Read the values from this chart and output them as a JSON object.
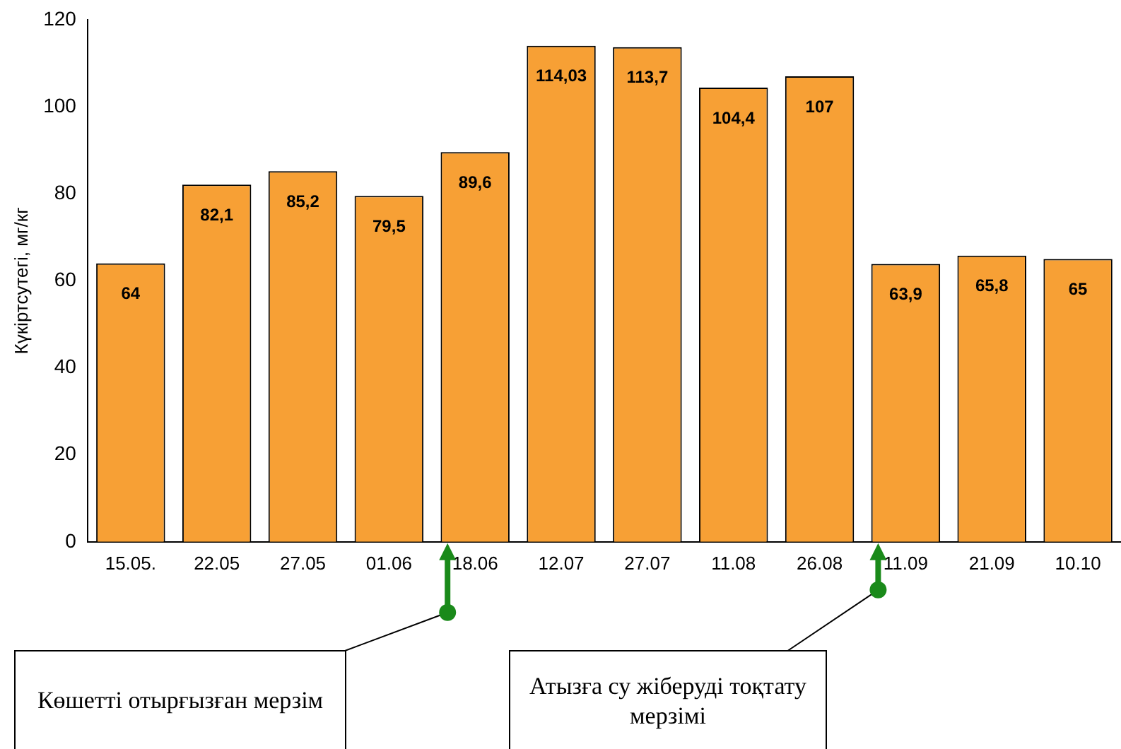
{
  "chart_data": {
    "type": "bar",
    "ylabel": "Күкіртсутегі, мг/кг",
    "categories": [
      "15.05.",
      "22.05",
      "27.05",
      "01.06",
      "18.06",
      "12.07",
      "27.07",
      "11.08",
      "26.08",
      "11.09",
      "21.09",
      "10.10"
    ],
    "values": [
      64,
      82.1,
      85.2,
      79.5,
      89.6,
      114.03,
      113.7,
      104.4,
      107,
      63.9,
      65.8,
      65
    ],
    "value_labels": [
      "64",
      "82,1",
      "85,2",
      "79,5",
      "89,6",
      "114,03",
      "113,7",
      "104,4",
      "107",
      "63,9",
      "65,8",
      "65"
    ],
    "color": "#f7a035",
    "ylim": [
      0,
      120
    ],
    "yticks": [
      0,
      20,
      40,
      60,
      80,
      100,
      120
    ],
    "grid": false,
    "legend": false,
    "annotations": [
      "Көшетті отырғызған мерзім",
      "Атызға су жіберуді тоқтату мерзімі"
    ]
  }
}
